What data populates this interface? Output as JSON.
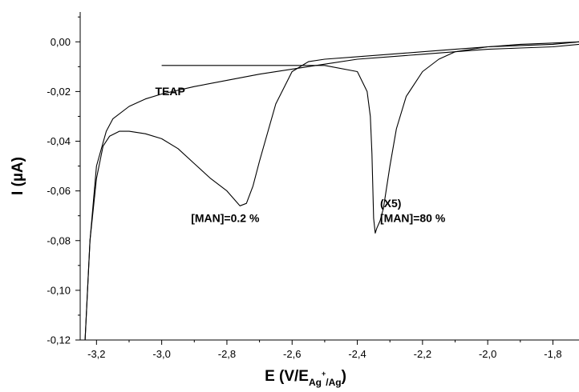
{
  "chart_data": {
    "type": "line",
    "title": "",
    "xlabel": {
      "main": "E (V/E",
      "sub": "Ag",
      "sup": "+",
      "sub2": "/Ag",
      "close": ")"
    },
    "ylabel": "I (µA)",
    "xlim": [
      -3.25,
      -1.72
    ],
    "ylim": [
      -0.12,
      0.012
    ],
    "x_reversed": true,
    "x_ticks": [
      -3.2,
      -3.0,
      -2.8,
      -2.6,
      -2.4,
      -2.2,
      -2.0,
      -1.8
    ],
    "x_tick_labels": [
      "-3,2",
      "-3,0",
      "-2,8",
      "-2,6",
      "-2,4",
      "-2,2",
      "-2,0",
      "-1,8"
    ],
    "y_ticks": [
      0.0,
      -0.02,
      -0.04,
      -0.06,
      -0.08,
      -0.1,
      -0.12
    ],
    "y_tick_labels": [
      "0,00",
      "-0,02",
      "-0,04",
      "-0,06",
      "-0,08",
      "-0,10",
      "-0,12"
    ],
    "grid": false,
    "legend": "none",
    "series": [
      {
        "x": [
          -1.72,
          -1.8,
          -1.9,
          -2.0,
          -2.1,
          -2.2,
          -2.3,
          -2.4,
          -2.5,
          -2.6,
          -2.7,
          -2.8,
          -2.9,
          -3.0,
          -3.05,
          -3.1,
          -3.15,
          -3.17,
          -3.2,
          -3.22,
          -3.235
        ],
        "y": [
          -0.001,
          -0.002,
          -0.0025,
          -0.003,
          -0.004,
          -0.005,
          -0.006,
          -0.007,
          -0.009,
          -0.011,
          -0.013,
          -0.0155,
          -0.018,
          -0.021,
          -0.023,
          -0.026,
          -0.031,
          -0.036,
          -0.05,
          -0.08,
          -0.12
        ]
      },
      {
        "x": [
          -1.72,
          -1.8,
          -1.9,
          -2.0,
          -2.1,
          -2.2,
          -2.3,
          -2.4,
          -2.5,
          -2.55,
          -2.6,
          -2.65,
          -2.7,
          -2.72,
          -2.74,
          -2.76,
          -2.78,
          -2.8,
          -2.85,
          -2.9,
          -2.95,
          -3.0,
          -3.05,
          -3.1,
          -3.13,
          -3.16,
          -3.18,
          -3.2,
          -3.22,
          -3.235
        ],
        "y": [
          0.0,
          -0.001,
          -0.0015,
          -0.002,
          -0.003,
          -0.004,
          -0.005,
          -0.006,
          -0.007,
          -0.008,
          -0.012,
          -0.025,
          -0.048,
          -0.058,
          -0.065,
          -0.066,
          -0.063,
          -0.06,
          -0.055,
          -0.049,
          -0.043,
          -0.039,
          -0.037,
          -0.036,
          -0.036,
          -0.038,
          -0.042,
          -0.055,
          -0.08,
          -0.12
        ]
      },
      {
        "x": [
          -1.72,
          -1.8,
          -1.9,
          -2.0,
          -2.1,
          -2.15,
          -2.2,
          -2.25,
          -2.28,
          -2.3,
          -2.32,
          -2.33,
          -2.34,
          -2.345,
          -2.35,
          -2.355,
          -2.36,
          -2.37,
          -2.4,
          -2.5,
          -2.6,
          -2.7,
          -2.8,
          -2.9,
          -3.0
        ],
        "y": [
          0.0,
          -0.0005,
          -0.001,
          -0.002,
          -0.004,
          -0.007,
          -0.012,
          -0.022,
          -0.035,
          -0.05,
          -0.067,
          -0.072,
          -0.075,
          -0.077,
          -0.071,
          -0.045,
          -0.03,
          -0.02,
          -0.012,
          -0.0095,
          -0.0095,
          -0.0095,
          -0.0095,
          -0.0095,
          -0.0095
        ]
      }
    ],
    "annotations": [
      {
        "text": "TEAP",
        "x": -3.02,
        "y": -0.0215
      },
      {
        "text": "[MAN]=0.2 %",
        "x": -2.91,
        "y": -0.0725
      },
      {
        "text": "(X5)",
        "x": -2.33,
        "y": -0.0665
      },
      {
        "text": "[MAN]=80 %",
        "x": -2.33,
        "y": -0.0725
      }
    ]
  }
}
